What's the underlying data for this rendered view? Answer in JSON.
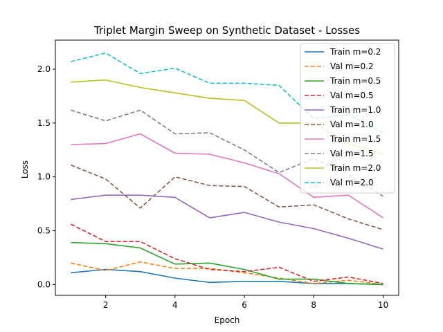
{
  "chart_data": {
    "type": "line",
    "title": "Triplet Margin Sweep on Synthetic Dataset - Losses",
    "xlabel": "Epoch",
    "ylabel": "Loss",
    "xlim": [
      0.55,
      10.45
    ],
    "ylim": [
      -0.1,
      2.27
    ],
    "xticks": [
      2,
      4,
      6,
      8,
      10
    ],
    "yticks": [
      0.0,
      0.5,
      1.0,
      1.5,
      2.0
    ],
    "ytick_labels": [
      "0.0",
      "0.5",
      "1.0",
      "1.5",
      "2.0"
    ],
    "legend_position": "top-right",
    "grid": false,
    "x": [
      1,
      2,
      3,
      4,
      5,
      6,
      7,
      8,
      9,
      10
    ],
    "series": [
      {
        "name": "Train m=0.2",
        "color": "#1f77b4",
        "dash": "solid",
        "values": [
          0.11,
          0.14,
          0.12,
          0.06,
          0.02,
          0.03,
          0.03,
          0.01,
          0.01,
          0.0
        ]
      },
      {
        "name": "Val m=0.2",
        "color": "#ff7f0e",
        "dash": "dashed",
        "values": [
          0.2,
          0.13,
          0.21,
          0.15,
          0.15,
          0.11,
          0.06,
          0.01,
          0.04,
          0.0
        ]
      },
      {
        "name": "Train m=0.5",
        "color": "#2ca02c",
        "dash": "solid",
        "values": [
          0.39,
          0.38,
          0.34,
          0.19,
          0.2,
          0.14,
          0.05,
          0.05,
          0.01,
          0.0
        ]
      },
      {
        "name": "Val m=0.5",
        "color": "#d62728",
        "dash": "dashed",
        "values": [
          0.56,
          0.4,
          0.4,
          0.24,
          0.14,
          0.12,
          0.16,
          0.03,
          0.07,
          0.01
        ]
      },
      {
        "name": "Train m=1.0",
        "color": "#9467bd",
        "dash": "solid",
        "values": [
          0.79,
          0.83,
          0.83,
          0.81,
          0.62,
          0.67,
          0.58,
          0.52,
          0.43,
          0.33
        ]
      },
      {
        "name": "Val m=1.0",
        "color": "#8c564b",
        "dash": "dashed",
        "values": [
          1.11,
          0.98,
          0.71,
          1.0,
          0.92,
          0.91,
          0.72,
          0.74,
          0.61,
          0.51
        ]
      },
      {
        "name": "Train m=1.5",
        "color": "#e377c2",
        "dash": "solid",
        "values": [
          1.3,
          1.31,
          1.4,
          1.22,
          1.21,
          1.13,
          1.03,
          0.81,
          0.83,
          0.62
        ]
      },
      {
        "name": "Val m=1.5",
        "color": "#7f7f7f",
        "dash": "dashed",
        "values": [
          1.62,
          1.52,
          1.62,
          1.4,
          1.41,
          1.25,
          1.04,
          1.17,
          1.02,
          0.82
        ]
      },
      {
        "name": "Train m=2.0",
        "color": "#bcbd22",
        "dash": "solid",
        "values": [
          1.88,
          1.9,
          1.83,
          1.78,
          1.73,
          1.71,
          1.5,
          1.5,
          1.31,
          1.21
        ]
      },
      {
        "name": "Val m=2.0",
        "color": "#17becf",
        "dash": "dashed",
        "values": [
          2.07,
          2.15,
          1.96,
          2.01,
          1.87,
          1.87,
          1.85,
          1.54,
          1.58,
          1.41
        ]
      }
    ]
  }
}
